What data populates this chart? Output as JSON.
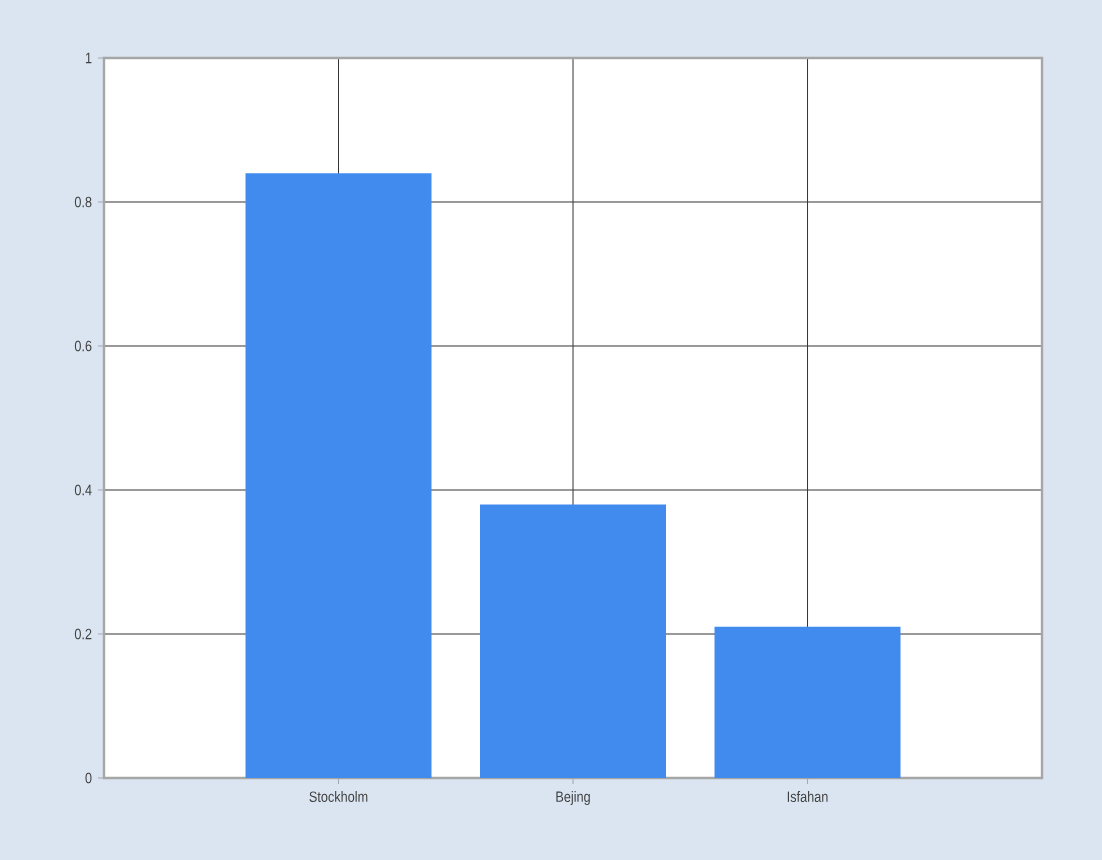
{
  "chart_data": {
    "type": "bar",
    "categories": [
      "Stockholm",
      "Bejing",
      "Isfahan"
    ],
    "values": [
      0.84,
      0.38,
      0.21
    ],
    "color": "#418bee",
    "ylim": [
      0,
      1
    ],
    "yticks": [
      0,
      {
        "value": 0.2,
        "label": "0.2"
      },
      {
        "value": 0.4,
        "label": "0.4"
      },
      {
        "value": 0.6,
        "label": "0.6"
      },
      {
        "value": 0.8,
        "label": "0.8"
      },
      1
    ],
    "grid": true
  }
}
